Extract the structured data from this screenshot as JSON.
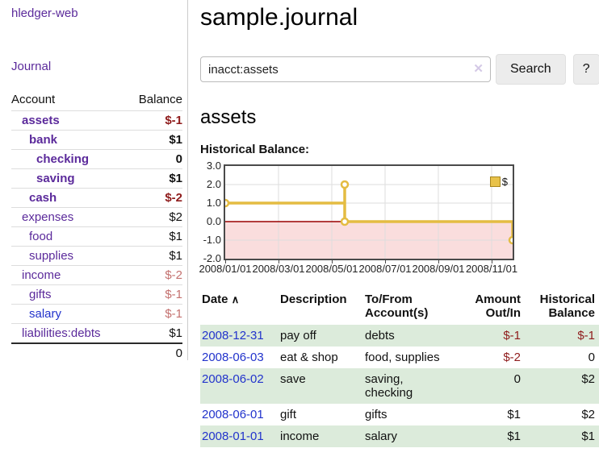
{
  "app": {
    "title": "hledger-web"
  },
  "sidebar": {
    "journal_link": "Journal",
    "table": {
      "headers": [
        "Account",
        "Balance"
      ],
      "accounts": [
        {
          "name": "assets",
          "indent": 1,
          "bold": true,
          "blue": false,
          "balance": "$-1",
          "balance_style": "neg-strong"
        },
        {
          "name": "bank",
          "indent": 2,
          "bold": true,
          "blue": false,
          "balance": "$1",
          "balance_style": "pos"
        },
        {
          "name": "checking",
          "indent": 3,
          "bold": true,
          "blue": false,
          "balance": "0",
          "balance_style": "pos"
        },
        {
          "name": "saving",
          "indent": 3,
          "bold": true,
          "blue": false,
          "balance": "$1",
          "balance_style": "pos"
        },
        {
          "name": "cash",
          "indent": 2,
          "bold": true,
          "blue": false,
          "balance": "$-2",
          "balance_style": "neg-strong"
        },
        {
          "name": "expenses",
          "indent": 1,
          "bold": false,
          "blue": false,
          "balance": "$2",
          "balance_style": "pos"
        },
        {
          "name": "food",
          "indent": 2,
          "bold": false,
          "blue": false,
          "balance": "$1",
          "balance_style": "pos"
        },
        {
          "name": "supplies",
          "indent": 2,
          "bold": false,
          "blue": false,
          "balance": "$1",
          "balance_style": "pos"
        },
        {
          "name": "income",
          "indent": 1,
          "bold": false,
          "blue": false,
          "balance": "$-2",
          "balance_style": "neg-light"
        },
        {
          "name": "gifts",
          "indent": 2,
          "bold": false,
          "blue": false,
          "balance": "$-1",
          "balance_style": "neg-light"
        },
        {
          "name": "salary",
          "indent": 2,
          "bold": false,
          "blue": true,
          "balance": "$-1",
          "balance_style": "neg-light"
        },
        {
          "name": "liabilities:debts",
          "indent": 1,
          "bold": false,
          "blue": false,
          "balance": "$1",
          "balance_style": "pos"
        }
      ],
      "total": "0"
    }
  },
  "header": {
    "title": "sample.journal"
  },
  "search": {
    "value": "inacct:assets",
    "clear_icon": "✕",
    "button_label": "Search",
    "help_label": "?"
  },
  "account_page": {
    "heading": "assets",
    "chart_title": "Historical Balance:"
  },
  "chart_data": {
    "type": "line",
    "title": "Historical Balance",
    "step": true,
    "series": [
      {
        "name": "$",
        "points": [
          {
            "date": "2008-01-01",
            "value": 1
          },
          {
            "date": "2008-06-01",
            "value": 2
          },
          {
            "date": "2008-06-02",
            "value": 2
          },
          {
            "date": "2008-06-03",
            "value": 0
          },
          {
            "date": "2008-12-31",
            "value": -1
          }
        ]
      }
    ],
    "ylim": [
      -2.0,
      3.0
    ],
    "y_ticks": [
      "3.0",
      "2.0",
      "1.0",
      "0.0",
      "-1.0",
      "-2.0"
    ],
    "x_ticks": [
      "2008/01/01",
      "2008/03/01",
      "2008/05/01",
      "2008/07/01",
      "2008/09/01",
      "2008/11/01"
    ],
    "legend": [
      "$"
    ],
    "legend_position": "top-right",
    "grid": true,
    "colors": {
      "line": "#e4bc42",
      "marker_fill": "#ffffff",
      "negative_region_fill": "#fadddd",
      "zero_line": "#990000",
      "grid": "#dddddd",
      "border": "#4a4a4a"
    }
  },
  "register": {
    "headers": {
      "date": "Date",
      "sort_icon": "∧",
      "description": "Description",
      "accounts": "To/From\nAccount(s)",
      "amount": "Amount\nOut/In",
      "balance": "Historical\nBalance"
    },
    "rows": [
      {
        "date": "2008-12-31",
        "description": "pay off",
        "accounts": "debts",
        "amount": "$-1",
        "amount_neg": true,
        "balance": "$-1",
        "balance_neg": true,
        "shaded": true
      },
      {
        "date": "2008-06-03",
        "description": "eat & shop",
        "accounts": "food, supplies",
        "amount": "$-2",
        "amount_neg": true,
        "balance": "0",
        "balance_neg": false,
        "shaded": false
      },
      {
        "date": "2008-06-02",
        "description": "save",
        "accounts": "saving,\nchecking",
        "amount": "0",
        "amount_neg": false,
        "balance": "$2",
        "balance_neg": false,
        "shaded": true
      },
      {
        "date": "2008-06-01",
        "description": "gift",
        "accounts": "gifts",
        "amount": "$1",
        "amount_neg": false,
        "balance": "$2",
        "balance_neg": false,
        "shaded": false
      },
      {
        "date": "2008-01-01",
        "description": "income",
        "accounts": "salary",
        "amount": "$1",
        "amount_neg": false,
        "balance": "$1",
        "balance_neg": false,
        "shaded": true
      }
    ]
  }
}
